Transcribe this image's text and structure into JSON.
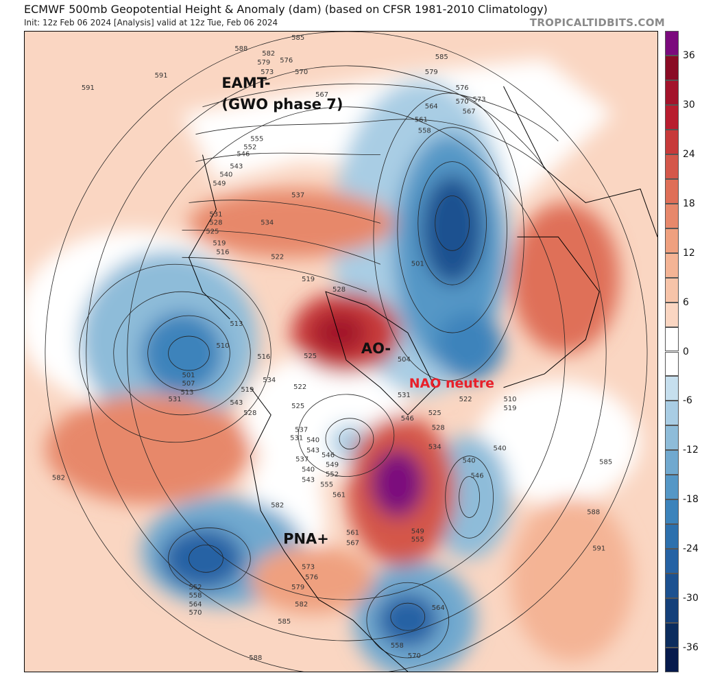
{
  "header": {
    "title": "ECMWF 500mb Geopotential Height & Anomaly (dam) (based on CFSR 1981-2010 Climatology)",
    "subtitle": "Init: 12z Feb 06 2024   [Analysis]   valid at 12z Tue, Feb 06 2024",
    "brand": "TROPICALTIDBITS.COM"
  },
  "annotations": {
    "eamt": "EAMT-",
    "gwo": "(GWO phase 7)",
    "ao": "AO-",
    "nao": "NAO neutre",
    "pna": "PNA+"
  },
  "colors": {
    "nao_text": "#e8202a",
    "bands": [
      "#7b0a7d",
      "#8a0b25",
      "#a3132b",
      "#b81d2f",
      "#c73a3a",
      "#d4574a",
      "#df6f58",
      "#e7886b",
      "#efa07f",
      "#f4b495",
      "#f7c4a9",
      "#fad6c2",
      "#ffffff",
      "#ffffff",
      "#c6dfee",
      "#a9cde4",
      "#8ebcd9",
      "#71a9cf",
      "#5597c6",
      "#3c83bb",
      "#2d70ad",
      "#2562a4",
      "#1c5190",
      "#14407a",
      "#0c2d5e",
      "#061a4c"
    ]
  },
  "colorbar": {
    "ticks": [
      "36",
      "30",
      "24",
      "18",
      "12",
      "6",
      "0",
      "-6",
      "-12",
      "-18",
      "-24",
      "-30",
      "-36"
    ]
  },
  "contour_labels": [
    "588",
    "582",
    "585",
    "579",
    "576",
    "573",
    "570",
    "567",
    "591",
    "591",
    "585",
    "579",
    "576",
    "573",
    "570",
    "564",
    "567",
    "561",
    "558",
    "555",
    "552",
    "546",
    "543",
    "540",
    "549",
    "537",
    "534",
    "531",
    "528",
    "525",
    "519",
    "516",
    "522",
    "519",
    "528",
    "513",
    "510",
    "516",
    "501",
    "507",
    "513",
    "522",
    "525",
    "519",
    "534",
    "531",
    "528",
    "525",
    "537",
    "540",
    "543",
    "546",
    "549",
    "552",
    "555",
    "561",
    "531",
    "537",
    "540",
    "543",
    "504",
    "501",
    "510",
    "519",
    "522",
    "525",
    "528",
    "534",
    "540",
    "546",
    "549",
    "555",
    "561",
    "567",
    "573",
    "576",
    "579",
    "582",
    "585",
    "588",
    "552",
    "558",
    "564",
    "570",
    "582",
    "585",
    "588",
    "591",
    "564",
    "558",
    "570",
    "531",
    "546",
    "582",
    "540",
    "543"
  ]
}
